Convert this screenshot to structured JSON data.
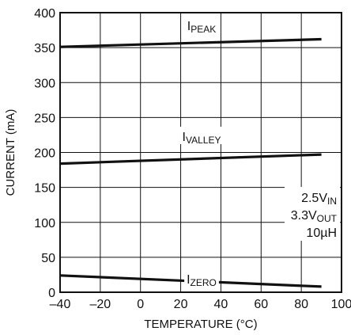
{
  "chart_data": {
    "type": "line",
    "xlabel": "TEMPERATURE (°C)",
    "ylabel": "CURRENT (mA)",
    "xlim": [
      -40,
      100
    ],
    "ylim": [
      0,
      400
    ],
    "x_ticks": [
      "–40",
      "–20",
      "0",
      "20",
      "40",
      "60",
      "80",
      "100"
    ],
    "x_tick_values": [
      -40,
      -20,
      0,
      20,
      40,
      60,
      80,
      100
    ],
    "y_ticks": [
      "0",
      "50",
      "100",
      "150",
      "200",
      "250",
      "300",
      "350",
      "400"
    ],
    "y_tick_values": [
      0,
      50,
      100,
      150,
      200,
      250,
      300,
      350,
      400
    ],
    "grid": true,
    "series": [
      {
        "name_main": "I",
        "name_sub": "PEAK",
        "x": [
          -40,
          90
        ],
        "y": [
          351,
          362
        ]
      },
      {
        "name_main": "I",
        "name_sub": "VALLEY",
        "x": [
          -40,
          90
        ],
        "y": [
          184,
          197
        ]
      },
      {
        "name_main": "I",
        "name_sub": "ZERO",
        "x": [
          -40,
          90
        ],
        "y": [
          24,
          8
        ]
      }
    ],
    "annotations": [
      {
        "main": "2.5V",
        "sub": "IN"
      },
      {
        "main": "3.3V",
        "sub": "OUT"
      },
      {
        "main": "10µH",
        "sub": ""
      }
    ]
  }
}
